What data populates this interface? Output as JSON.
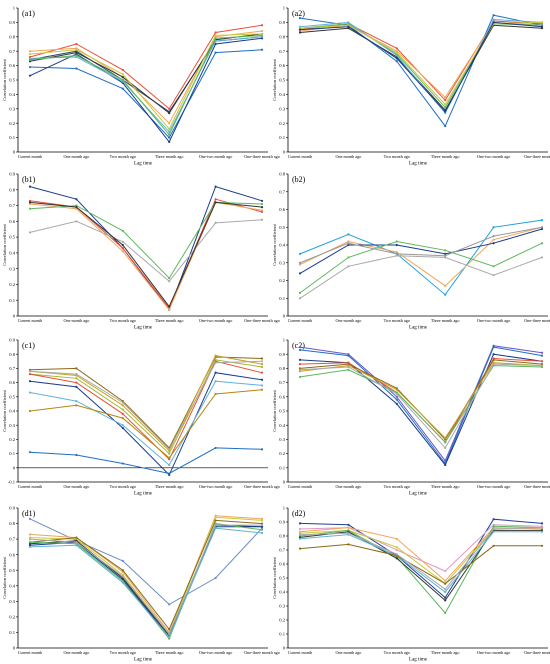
{
  "chart_data": [
    {
      "id": "a1",
      "type": "line",
      "panel_label": "(a1)",
      "categories": [
        "Current month",
        "One month ago",
        "Two month ago",
        "Three month ago",
        "One-two month ago",
        "One-three month ago"
      ],
      "xlabel": "Lag time",
      "ylabel": "Correlation coefficient",
      "ylim": [
        0,
        1
      ],
      "yticks": [
        0,
        0.1,
        0.2,
        0.3,
        0.4,
        0.5,
        0.6,
        0.7,
        0.8,
        0.9,
        1
      ],
      "series": [
        {
          "color": "#e8503a",
          "values": [
            0.66,
            0.75,
            0.57,
            0.3,
            0.83,
            0.88
          ]
        },
        {
          "color": "#f0a55a",
          "values": [
            0.7,
            0.72,
            0.52,
            0.2,
            0.8,
            0.84
          ]
        },
        {
          "color": "#2a4a7a",
          "values": [
            0.64,
            0.7,
            0.5,
            0.28,
            0.77,
            0.8
          ]
        },
        {
          "color": "#1f6fc1",
          "values": [
            0.59,
            0.58,
            0.44,
            0.1,
            0.69,
            0.71
          ]
        },
        {
          "color": "#1a3c8c",
          "values": [
            0.53,
            0.68,
            0.48,
            0.07,
            0.75,
            0.79
          ]
        },
        {
          "color": "#333333",
          "values": [
            0.63,
            0.69,
            0.52,
            0.27,
            0.78,
            0.82
          ]
        },
        {
          "color": "#63b3d9",
          "values": [
            0.65,
            0.66,
            0.49,
            0.14,
            0.77,
            0.8
          ]
        },
        {
          "color": "#5cb85c",
          "values": [
            0.64,
            0.67,
            0.5,
            0.12,
            0.79,
            0.81
          ]
        },
        {
          "color": "#c9c93a",
          "values": [
            0.68,
            0.71,
            0.54,
            0.16,
            0.81,
            0.82
          ]
        }
      ]
    },
    {
      "id": "a2",
      "type": "line",
      "panel_label": "(a2)",
      "categories": [
        "Current month",
        "One month ago",
        "Two month ago",
        "Three month ago",
        "One-two month ago",
        "One-three month ago"
      ],
      "xlabel": "Lag time",
      "ylabel": "Correlation coefficient",
      "ylim": [
        0,
        1
      ],
      "yticks": [
        0,
        0.1,
        0.2,
        0.3,
        0.4,
        0.5,
        0.6,
        0.7,
        0.8,
        0.9,
        1
      ],
      "series": [
        {
          "color": "#1f6fc1",
          "values": [
            0.93,
            0.88,
            0.63,
            0.18,
            0.95,
            0.88
          ]
        },
        {
          "color": "#e8503a",
          "values": [
            0.85,
            0.89,
            0.72,
            0.36,
            0.91,
            0.89
          ]
        },
        {
          "color": "#f0a55a",
          "values": [
            0.84,
            0.88,
            0.7,
            0.38,
            0.9,
            0.88
          ]
        },
        {
          "color": "#333333",
          "values": [
            0.83,
            0.86,
            0.66,
            0.29,
            0.88,
            0.86
          ]
        },
        {
          "color": "#5cb85c",
          "values": [
            0.86,
            0.89,
            0.68,
            0.31,
            0.89,
            0.88
          ]
        },
        {
          "color": "#63b3d9",
          "values": [
            0.87,
            0.9,
            0.67,
            0.27,
            0.92,
            0.9
          ]
        },
        {
          "color": "#c9c93a",
          "values": [
            0.86,
            0.88,
            0.69,
            0.33,
            0.89,
            0.9
          ]
        },
        {
          "color": "#1a3c8c",
          "values": [
            0.85,
            0.87,
            0.65,
            0.28,
            0.9,
            0.87
          ]
        }
      ]
    },
    {
      "id": "b1",
      "type": "line",
      "panel_label": "(b1)",
      "categories": [
        "Current month",
        "One month ago",
        "Two month ago",
        "Three month ago",
        "One-two month ago",
        "One-three month ago"
      ],
      "xlabel": "Lag time",
      "ylabel": "Correlation coefficient",
      "ylim": [
        0,
        0.9
      ],
      "yticks": [
        0,
        0.1,
        0.2,
        0.3,
        0.4,
        0.5,
        0.6,
        0.7,
        0.8,
        0.9
      ],
      "series": [
        {
          "color": "#1a3c8c",
          "values": [
            0.82,
            0.74,
            0.43,
            0.04,
            0.82,
            0.73
          ]
        },
        {
          "color": "#e8503a",
          "values": [
            0.73,
            0.69,
            0.43,
            0.05,
            0.74,
            0.66
          ]
        },
        {
          "color": "#f0a55a",
          "values": [
            0.71,
            0.68,
            0.41,
            0.04,
            0.72,
            0.67
          ]
        },
        {
          "color": "#5cb85c",
          "values": [
            0.68,
            0.7,
            0.54,
            0.24,
            0.72,
            0.71
          ]
        },
        {
          "color": "#aaaaaa",
          "values": [
            0.53,
            0.6,
            0.47,
            0.22,
            0.59,
            0.61
          ]
        },
        {
          "color": "#333333",
          "values": [
            0.72,
            0.69,
            0.45,
            0.06,
            0.72,
            0.69
          ]
        }
      ]
    },
    {
      "id": "b2",
      "type": "line",
      "panel_label": "(b2)",
      "categories": [
        "Current month",
        "One month ago",
        "Two month ago",
        "Three month ago",
        "One-two month ago",
        "One-three month ago"
      ],
      "xlabel": "Lag time",
      "ylabel": "Correlation coefficient",
      "ylim": [
        0,
        0.8
      ],
      "yticks": [
        0,
        0.1,
        0.2,
        0.3,
        0.4,
        0.5,
        0.6,
        0.7,
        0.8
      ],
      "series": [
        {
          "color": "#1fa3dc",
          "values": [
            0.35,
            0.46,
            0.35,
            0.12,
            0.5,
            0.54
          ]
        },
        {
          "color": "#f0a55a",
          "values": [
            0.29,
            0.42,
            0.36,
            0.17,
            0.43,
            0.5
          ]
        },
        {
          "color": "#1a3c8c",
          "values": [
            0.24,
            0.4,
            0.4,
            0.35,
            0.41,
            0.49
          ]
        },
        {
          "color": "#5cb85c",
          "values": [
            0.13,
            0.33,
            0.42,
            0.37,
            0.28,
            0.41
          ]
        },
        {
          "color": "#aaaaaa",
          "values": [
            0.1,
            0.28,
            0.34,
            0.33,
            0.23,
            0.33
          ]
        },
        {
          "color": "#999999",
          "values": [
            0.3,
            0.41,
            0.35,
            0.34,
            0.45,
            0.5
          ]
        }
      ]
    },
    {
      "id": "c1",
      "type": "line",
      "panel_label": "(c1)",
      "categories": [
        "Current month",
        "One month ago",
        "Two month ago",
        "Three month ago",
        "One-two month ago",
        "One-three month ago"
      ],
      "xlabel": "Lag time",
      "ylabel": "Correlation coefficient",
      "ylim": [
        -0.1,
        0.9
      ],
      "yticks": [
        -0.1,
        0,
        0.1,
        0.2,
        0.3,
        0.4,
        0.5,
        0.6,
        0.7,
        0.8,
        0.9
      ],
      "series": [
        {
          "color": "#8b6a14",
          "values": [
            0.69,
            0.7,
            0.47,
            0.14,
            0.78,
            0.77
          ]
        },
        {
          "color": "#c9a227",
          "values": [
            0.68,
            0.65,
            0.44,
            0.12,
            0.79,
            0.73
          ]
        },
        {
          "color": "#a5b82e",
          "values": [
            0.66,
            0.63,
            0.41,
            0.1,
            0.76,
            0.71
          ]
        },
        {
          "color": "#e8503a",
          "values": [
            0.66,
            0.6,
            0.38,
            0.06,
            0.75,
            0.67
          ]
        },
        {
          "color": "#1a3c8c",
          "values": [
            0.61,
            0.57,
            0.28,
            -0.05,
            0.67,
            0.62
          ]
        },
        {
          "color": "#63b3d9",
          "values": [
            0.53,
            0.47,
            0.3,
            0.02,
            0.61,
            0.58
          ]
        },
        {
          "color": "#b8860b",
          "values": [
            0.4,
            0.44,
            0.35,
            0.07,
            0.52,
            0.55
          ]
        },
        {
          "color": "#1f6fc1",
          "values": [
            0.11,
            0.09,
            0.03,
            -0.04,
            0.14,
            0.13
          ]
        },
        {
          "color": "#aaaaaa",
          "values": [
            0.68,
            0.66,
            0.46,
            0.13,
            0.74,
            0.75
          ]
        }
      ]
    },
    {
      "id": "c2",
      "type": "line",
      "panel_label": "(c2)",
      "categories": [
        "Current month",
        "One month ago",
        "Two month ago",
        "Three month ago",
        "One-two month ago",
        "One-three month ago"
      ],
      "xlabel": "Lag time",
      "ylabel": "Correlation coefficient",
      "ylim": [
        0,
        1
      ],
      "yticks": [
        0,
        0.1,
        0.2,
        0.3,
        0.4,
        0.5,
        0.6,
        0.7,
        0.8,
        0.9,
        1
      ],
      "series": [
        {
          "color": "#6a5acd",
          "values": [
            0.95,
            0.9,
            0.6,
            0.15,
            0.96,
            0.91
          ]
        },
        {
          "color": "#1f6fc1",
          "values": [
            0.93,
            0.89,
            0.58,
            0.13,
            0.95,
            0.89
          ]
        },
        {
          "color": "#1a3c8c",
          "values": [
            0.86,
            0.84,
            0.55,
            0.12,
            0.9,
            0.85
          ]
        },
        {
          "color": "#e8503a",
          "values": [
            0.83,
            0.84,
            0.63,
            0.28,
            0.87,
            0.85
          ]
        },
        {
          "color": "#8b6a14",
          "values": [
            0.8,
            0.83,
            0.66,
            0.3,
            0.86,
            0.83
          ]
        },
        {
          "color": "#c9a227",
          "values": [
            0.78,
            0.82,
            0.65,
            0.31,
            0.84,
            0.82
          ]
        },
        {
          "color": "#5cb85c",
          "values": [
            0.74,
            0.79,
            0.63,
            0.28,
            0.82,
            0.81
          ]
        },
        {
          "color": "#aaaaaa",
          "values": [
            0.79,
            0.81,
            0.62,
            0.24,
            0.83,
            0.82
          ]
        }
      ]
    },
    {
      "id": "d1",
      "type": "line",
      "panel_label": "(d1)",
      "categories": [
        "Current month",
        "One month ago",
        "Two month ago",
        "Three month ago",
        "One-two month ago",
        "One-three month ago"
      ],
      "xlabel": "Lag time",
      "ylabel": "Correlation coefficient",
      "ylim": [
        0,
        0.9
      ],
      "yticks": [
        0,
        0.1,
        0.2,
        0.3,
        0.4,
        0.5,
        0.6,
        0.7,
        0.8,
        0.9
      ],
      "series": [
        {
          "color": "#6a8cc7",
          "values": [
            0.83,
            0.69,
            0.56,
            0.28,
            0.45,
            0.77
          ]
        },
        {
          "color": "#f0a55a",
          "values": [
            0.73,
            0.71,
            0.49,
            0.1,
            0.85,
            0.83
          ]
        },
        {
          "color": "#c9c93a",
          "values": [
            0.71,
            0.7,
            0.47,
            0.09,
            0.84,
            0.82
          ]
        },
        {
          "color": "#8b6a14",
          "values": [
            0.68,
            0.71,
            0.5,
            0.12,
            0.82,
            0.8
          ]
        },
        {
          "color": "#333333",
          "values": [
            0.67,
            0.69,
            0.45,
            0.08,
            0.79,
            0.78
          ]
        },
        {
          "color": "#1a3c8c",
          "values": [
            0.66,
            0.68,
            0.44,
            0.07,
            0.78,
            0.78
          ]
        },
        {
          "color": "#5cb85c",
          "values": [
            0.68,
            0.67,
            0.43,
            0.06,
            0.8,
            0.76
          ]
        },
        {
          "color": "#63b3d9",
          "values": [
            0.65,
            0.66,
            0.42,
            0.07,
            0.77,
            0.74
          ]
        },
        {
          "color": "#aaaaaa",
          "values": [
            0.7,
            0.68,
            0.46,
            0.09,
            0.79,
            0.79
          ]
        }
      ]
    },
    {
      "id": "d2",
      "type": "line",
      "panel_label": "(d2)",
      "categories": [
        "Current month",
        "One month ago",
        "Two month ago",
        "Three month ago",
        "One-two month ago",
        "One-three month ago"
      ],
      "xlabel": "Lag time",
      "ylabel": "Correlation coefficient",
      "ylim": [
        0,
        1
      ],
      "yticks": [
        0,
        0.1,
        0.2,
        0.3,
        0.4,
        0.5,
        0.6,
        0.7,
        0.8,
        0.9,
        1
      ],
      "series": [
        {
          "color": "#1f3f9c",
          "values": [
            0.89,
            0.88,
            0.66,
            0.36,
            0.92,
            0.89
          ]
        },
        {
          "color": "#e39ac8",
          "values": [
            0.85,
            0.86,
            0.7,
            0.55,
            0.88,
            0.87
          ]
        },
        {
          "color": "#f0a55a",
          "values": [
            0.83,
            0.86,
            0.78,
            0.48,
            0.86,
            0.85
          ]
        },
        {
          "color": "#c9c93a",
          "values": [
            0.82,
            0.84,
            0.72,
            0.46,
            0.85,
            0.86
          ]
        },
        {
          "color": "#5cb85c",
          "values": [
            0.8,
            0.84,
            0.65,
            0.25,
            0.87,
            0.86
          ]
        },
        {
          "color": "#333333",
          "values": [
            0.79,
            0.83,
            0.64,
            0.34,
            0.84,
            0.84
          ]
        },
        {
          "color": "#63b3d9",
          "values": [
            0.78,
            0.81,
            0.66,
            0.4,
            0.83,
            0.83
          ]
        },
        {
          "color": "#8b6a14",
          "values": [
            0.71,
            0.74,
            0.66,
            0.46,
            0.73,
            0.73
          ]
        },
        {
          "color": "#aaaaaa",
          "values": [
            0.81,
            0.82,
            0.67,
            0.42,
            0.85,
            0.86
          ]
        }
      ]
    }
  ]
}
